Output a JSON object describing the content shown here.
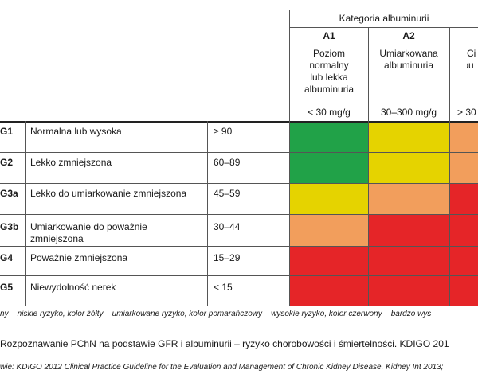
{
  "colors": {
    "green": "#21a248",
    "yellow": "#e5d300",
    "orange": "#f29e5c",
    "red": "#e52528"
  },
  "header": {
    "group_title": "Kategoria albuminurii",
    "columns": [
      {
        "code": "A1",
        "description": [
          "Poziom",
          "normalny",
          "lub lekka",
          "albuminuria"
        ],
        "range": "< 30 mg/g"
      },
      {
        "code": "A2",
        "description": [
          "Umiarkowana",
          "albuminuria"
        ],
        "range": "30–300 mg/g"
      },
      {
        "code": "",
        "description": [
          "Ci",
          "albu"
        ],
        "range": "> 30"
      }
    ]
  },
  "rows": [
    {
      "code": "G1",
      "label": [
        "Normalna lub wysoka"
      ],
      "gfr": "≥ 90",
      "risk": [
        "green",
        "yellow",
        "orange"
      ]
    },
    {
      "code": "G2",
      "label": [
        "Lekko zmniejszona"
      ],
      "gfr": "60–89",
      "risk": [
        "green",
        "yellow",
        "orange"
      ]
    },
    {
      "code": "G3a",
      "label": [
        "Lekko do umiarkowanie zmniejszona"
      ],
      "gfr": "45–59",
      "risk": [
        "yellow",
        "orange",
        "red"
      ]
    },
    {
      "code": "G3b",
      "label": [
        "Umiarkowanie do poważnie",
        "zmniejszona"
      ],
      "gfr": "30–44",
      "risk": [
        "orange",
        "red",
        "red"
      ]
    },
    {
      "code": "G4",
      "label": [
        "Poważnie zmniejszona"
      ],
      "gfr": "15–29",
      "risk": [
        "red",
        "red",
        "red"
      ]
    },
    {
      "code": "G5",
      "label": [
        "Niewydolność nerek"
      ],
      "gfr": "< 15",
      "risk": [
        "red",
        "red",
        "red"
      ]
    }
  ],
  "captions": {
    "legend": "ny – niskie ryzyko, kolor żółty – umiarkowane ryzyko, kolor pomarańczowy – wysokie ryzyko, kolor czerwony – bardzo wys",
    "title": "Rozpoznawanie PChN na podstawie GFR i albuminurii – ryzyko chorobowości i śmiertelności. KDIGO 201",
    "source": "wie: KDIGO 2012 Clinical Practice Guideline for the Evaluation and Management of Chronic Kidney Disease. Kidney Int 2013;"
  }
}
